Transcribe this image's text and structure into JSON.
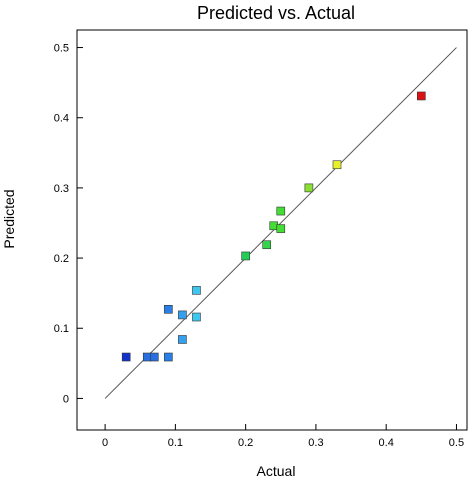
{
  "chart_data": {
    "type": "scatter",
    "title": "Predicted vs. Actual",
    "xlabel": "Actual",
    "ylabel": "Predicted",
    "xlim": [
      -0.04,
      0.515
    ],
    "ylim": [
      -0.045,
      0.525
    ],
    "x_ticks": [
      "0",
      "0.1",
      "0.2",
      "0.3",
      "0.4",
      "0.5"
    ],
    "y_ticks": [
      "0",
      "0.1",
      "0.2",
      "0.3",
      "0.4",
      "0.5"
    ],
    "grid": false,
    "reference_line": {
      "from": [
        0,
        0
      ],
      "to": [
        0.5,
        0.5
      ],
      "color": "#555555"
    },
    "points": [
      {
        "x": 0.03,
        "y": 0.059,
        "color": "#1133cc"
      },
      {
        "x": 0.06,
        "y": 0.059,
        "color": "#2a6fe0"
      },
      {
        "x": 0.07,
        "y": 0.059,
        "color": "#2a6fe0"
      },
      {
        "x": 0.09,
        "y": 0.059,
        "color": "#2a7fe6"
      },
      {
        "x": 0.09,
        "y": 0.127,
        "color": "#2a7fe6"
      },
      {
        "x": 0.11,
        "y": 0.119,
        "color": "#35a0ee"
      },
      {
        "x": 0.11,
        "y": 0.084,
        "color": "#35a0ee"
      },
      {
        "x": 0.13,
        "y": 0.154,
        "color": "#3fc6ee"
      },
      {
        "x": 0.13,
        "y": 0.116,
        "color": "#3fc6ee"
      },
      {
        "x": 0.2,
        "y": 0.203,
        "color": "#22cc55"
      },
      {
        "x": 0.23,
        "y": 0.219,
        "color": "#33d64a"
      },
      {
        "x": 0.24,
        "y": 0.246,
        "color": "#44dd33"
      },
      {
        "x": 0.25,
        "y": 0.267,
        "color": "#44dd33"
      },
      {
        "x": 0.25,
        "y": 0.242,
        "color": "#44dd33"
      },
      {
        "x": 0.29,
        "y": 0.3,
        "color": "#88e033"
      },
      {
        "x": 0.33,
        "y": 0.333,
        "color": "#e8f02a"
      },
      {
        "x": 0.45,
        "y": 0.431,
        "color": "#dd1111"
      }
    ]
  }
}
